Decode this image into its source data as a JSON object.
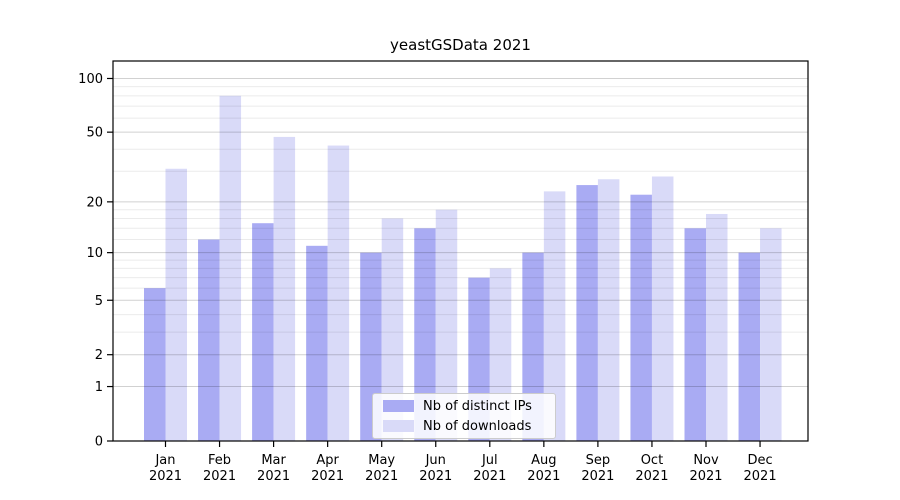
{
  "chart_data": {
    "type": "bar",
    "title": "yeastGSData 2021",
    "categories": [
      "Jan",
      "Feb",
      "Mar",
      "Apr",
      "May",
      "Jun",
      "Jul",
      "Aug",
      "Sep",
      "Oct",
      "Nov",
      "Dec"
    ],
    "year_label": "2021",
    "series": [
      {
        "name": "Nb of distinct IPs",
        "color": "#a9abf3",
        "values": [
          6,
          12,
          15,
          11,
          10,
          14,
          7,
          10,
          25,
          22,
          14,
          10
        ]
      },
      {
        "name": "Nb of downloads",
        "color": "#d9daf8",
        "values": [
          31,
          80,
          47,
          42,
          16,
          18,
          8,
          23,
          27,
          28,
          17,
          14
        ]
      }
    ],
    "yscale": "log1p",
    "yticks": [
      0,
      1,
      2,
      5,
      10,
      20,
      50,
      100
    ],
    "yminor_gridlines": [
      3,
      4,
      6,
      7,
      8,
      9,
      12,
      14,
      16,
      18,
      30,
      40,
      60,
      70,
      80,
      90
    ],
    "ylim": [
      0,
      125
    ],
    "grid": "horizontal",
    "legend_position": "bottom-center",
    "axis_color": "#000000",
    "major_grid_color": "rgba(0,0,0,0.18)",
    "minor_grid_color": "rgba(0,0,0,0.08)"
  }
}
